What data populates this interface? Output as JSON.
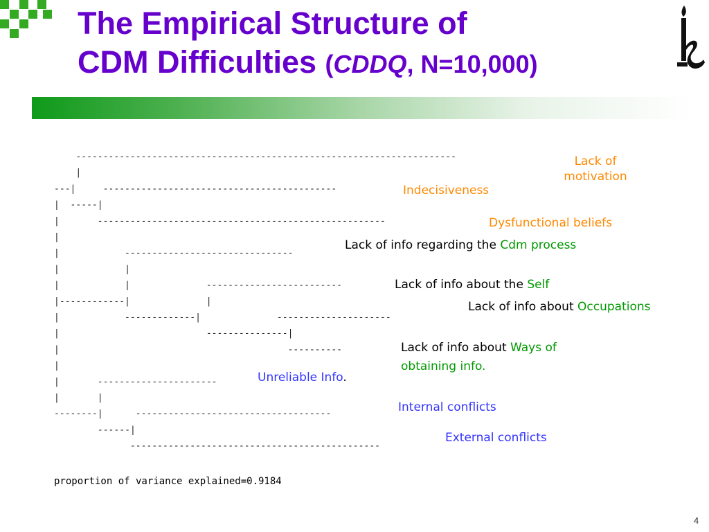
{
  "title": {
    "line1": "The Empirical Structure of",
    "line2": "CDM Difficulties",
    "paren_open": "(",
    "instrument": "CDDQ",
    "sample": ", N=10,000)"
  },
  "clusters": {
    "lack_of_motivation": {
      "line1": "Lack of",
      "line2": "motivation"
    },
    "indecisiveness": "Indecisiveness",
    "dysfunctional_beliefs": "Dysfunctional beliefs",
    "info_process": {
      "prefix": "Lack of info regarding the ",
      "highlight": "Cdm process"
    },
    "info_self": {
      "prefix": "Lack of info about the ",
      "highlight": "Self"
    },
    "info_occupations": {
      "prefix": "Lack of info about ",
      "highlight": "Occupations"
    },
    "info_ways": {
      "prefix": "Lack of info about ",
      "highlight": "Ways of",
      "line2": "obtaining info."
    },
    "unreliable_info": {
      "text": "Unreliable Info",
      "suffix": "."
    },
    "internal_conflicts": "Internal conflicts",
    "external_conflicts": "External conflicts"
  },
  "dendrogram_lines": [
    "----------------------------------------------------------------------",
    "|",
    "---|     -------------------------------------------",
    "|  -----|",
    "|       -----------------------------------------------------",
    "|",
    "|            -------------------------------",
    "|            |",
    "|            |              -------------------------",
    "|------------|              |",
    "|            -------------|              ---------------------",
    "|                           ---------------|",
    "|                                          ----------",
    "|",
    "|       ----------------------",
    "|       |",
    "--------|      ------------------------------------",
    "        ------|",
    "              ----------------------------------------------"
  ],
  "variance_text": "proportion of variance explained=0.9184",
  "page_number": "4",
  "colors": {
    "title": "#6600cc",
    "orange": "#ff8800",
    "green": "#009900",
    "blue": "#3333ff",
    "bar_start": "#0f9a1a",
    "logo_square": "#33aa22"
  },
  "icons": {
    "top_left": "green-checker-squares-icon",
    "top_right": "stylized-figure-logo-icon"
  }
}
